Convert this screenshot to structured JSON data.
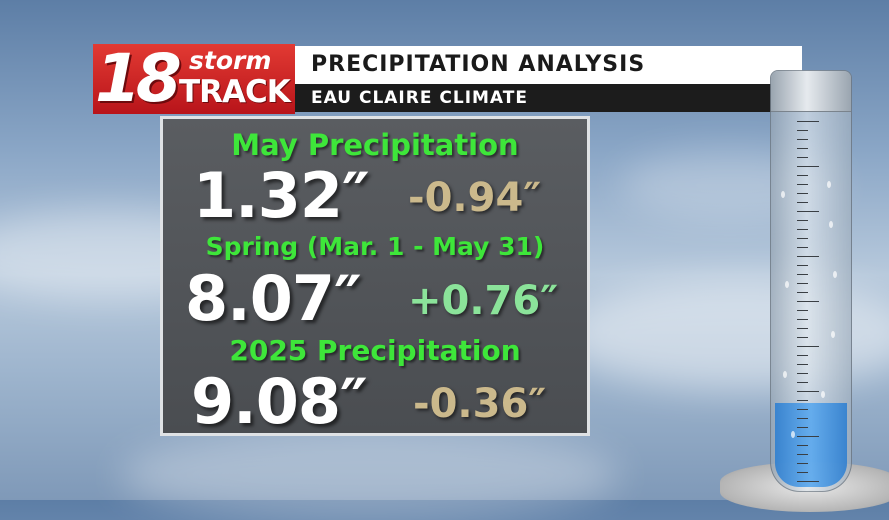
{
  "logo": {
    "number": "18",
    "word_top": "storm",
    "word_bottom": "TRACK"
  },
  "header": {
    "title": "PRECIPITATION ANALYSIS",
    "subtitle": "EAU CLAIRE CLIMATE"
  },
  "rows": [
    {
      "label": "May Precipitation",
      "value": "1.32″",
      "departure": "-0.94″",
      "departure_color": "#cbb98c"
    },
    {
      "label": "Spring (Mar. 1 - May 31)",
      "value": "8.07″",
      "departure": "+0.76″",
      "departure_color": "#8be39a"
    },
    {
      "label": "2025 Precipitation",
      "value": "9.08″",
      "departure": "-0.36″",
      "departure_color": "#cbb98c"
    }
  ],
  "colors": {
    "label_green": "#3ee63a",
    "logo_red": "#d4252a"
  },
  "gauge": {
    "icon": "rain-gauge-icon",
    "fill_fraction": 0.2
  }
}
